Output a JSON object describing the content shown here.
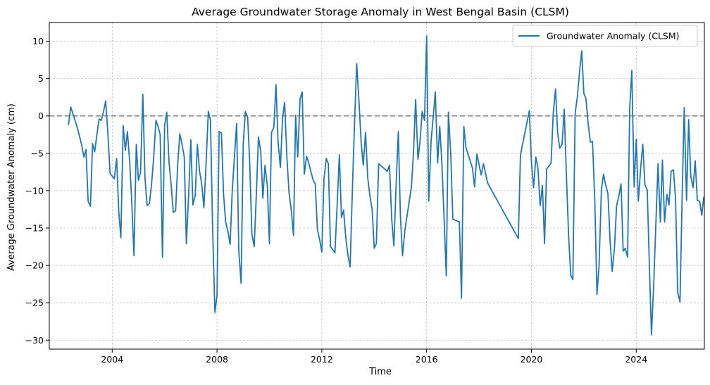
{
  "chart_data": {
    "type": "line",
    "title": "Average Groundwater Storage Anomaly in West Bengal Basin (CLSM)",
    "xlabel": "Time",
    "ylabel": "Average Groundwater Anomaly (cm)",
    "xlim": [
      2001.6,
      2026.6
    ],
    "ylim": [
      -31.2,
      12.5
    ],
    "xticks": [
      2004,
      2008,
      2012,
      2016,
      2020,
      2024
    ],
    "yticks": [
      -30,
      -25,
      -20,
      -15,
      -10,
      -5,
      0,
      5,
      10
    ],
    "grid": true,
    "reference_line": {
      "y": 0,
      "style": "dashed",
      "color": "#808080"
    },
    "legend": {
      "location": "top-right",
      "entries": [
        "Groundwater Anomaly (CLSM)"
      ]
    },
    "colors": {
      "series": "#1f77b4",
      "reference": "#808080",
      "grid": "#b0b0b0"
    },
    "series": [
      {
        "name": "Groundwater Anomaly (CLSM)",
        "points": [
          [
            2002.33,
            -1.2
          ],
          [
            2002.42,
            1.2
          ],
          [
            2002.5,
            0.3
          ],
          [
            2002.58,
            -0.6
          ],
          [
            2002.67,
            -1.6
          ],
          [
            2002.75,
            -2.7
          ],
          [
            2002.83,
            -3.8
          ],
          [
            2002.92,
            -5.5
          ],
          [
            2003.0,
            -4.5
          ],
          [
            2003.08,
            -11.4
          ],
          [
            2003.17,
            -12.1
          ],
          [
            2003.25,
            -3.7
          ],
          [
            2003.33,
            -4.8
          ],
          [
            2003.42,
            -2.4
          ],
          [
            2003.5,
            -0.4
          ],
          [
            2003.58,
            -0.6
          ],
          [
            2003.67,
            0.6
          ],
          [
            2003.75,
            2.0
          ],
          [
            2003.83,
            -2.1
          ],
          [
            2003.92,
            -7.7
          ],
          [
            2004.08,
            -8.4
          ],
          [
            2004.17,
            -5.7
          ],
          [
            2004.25,
            -12.8
          ],
          [
            2004.33,
            -16.3
          ],
          [
            2004.42,
            -1.3
          ],
          [
            2004.5,
            -4.6
          ],
          [
            2004.58,
            -2.1
          ],
          [
            2004.67,
            -6.2
          ],
          [
            2004.75,
            -11.8
          ],
          [
            2004.83,
            -18.7
          ],
          [
            2004.92,
            -3.8
          ],
          [
            2005.0,
            -8.6
          ],
          [
            2005.08,
            -7.6
          ],
          [
            2005.17,
            2.9
          ],
          [
            2005.25,
            -8.2
          ],
          [
            2005.33,
            -12.0
          ],
          [
            2005.42,
            -11.7
          ],
          [
            2005.5,
            -9.2
          ],
          [
            2005.58,
            -5.7
          ],
          [
            2005.67,
            -0.6
          ],
          [
            2005.75,
            -1.4
          ],
          [
            2005.83,
            -2.5
          ],
          [
            2005.92,
            -18.9
          ],
          [
            2006.0,
            -1.3
          ],
          [
            2006.08,
            0.5
          ],
          [
            2006.17,
            -6.2
          ],
          [
            2006.25,
            -9.2
          ],
          [
            2006.33,
            -12.9
          ],
          [
            2006.42,
            -12.7
          ],
          [
            2006.5,
            -6.5
          ],
          [
            2006.58,
            -2.4
          ],
          [
            2006.67,
            -3.9
          ],
          [
            2006.75,
            -5.5
          ],
          [
            2006.83,
            -17.1
          ],
          [
            2006.92,
            -10.4
          ],
          [
            2007.0,
            -3.2
          ],
          [
            2007.08,
            -11.9
          ],
          [
            2007.17,
            -10.6
          ],
          [
            2007.25,
            -3.8
          ],
          [
            2007.33,
            -7.3
          ],
          [
            2007.42,
            -9.2
          ],
          [
            2007.5,
            -12.3
          ],
          [
            2007.58,
            -6.5
          ],
          [
            2007.67,
            0.6
          ],
          [
            2007.75,
            -0.6
          ],
          [
            2007.83,
            -14.7
          ],
          [
            2007.92,
            -26.3
          ],
          [
            2008.0,
            -24.0
          ],
          [
            2008.08,
            -2.1
          ],
          [
            2008.17,
            -2.3
          ],
          [
            2008.25,
            -10.5
          ],
          [
            2008.33,
            -14.2
          ],
          [
            2008.42,
            -15.5
          ],
          [
            2008.5,
            -17.2
          ],
          [
            2008.58,
            -10.1
          ],
          [
            2008.67,
            -5.2
          ],
          [
            2008.75,
            -1.0
          ],
          [
            2008.83,
            -18.0
          ],
          [
            2008.92,
            -22.4
          ],
          [
            2009.0,
            -3.8
          ],
          [
            2009.08,
            0.6
          ],
          [
            2009.17,
            -0.2
          ],
          [
            2009.25,
            -6.5
          ],
          [
            2009.33,
            -15.8
          ],
          [
            2009.42,
            -17.5
          ],
          [
            2009.5,
            -10.6
          ],
          [
            2009.58,
            -2.8
          ],
          [
            2009.67,
            -4.8
          ],
          [
            2009.75,
            -11.0
          ],
          [
            2009.83,
            -6.6
          ],
          [
            2009.92,
            -9.3
          ],
          [
            2010.0,
            -17.1
          ],
          [
            2010.08,
            -2.2
          ],
          [
            2010.17,
            -1.5
          ],
          [
            2010.25,
            4.2
          ],
          [
            2010.33,
            -3.5
          ],
          [
            2010.42,
            -6.9
          ],
          [
            2010.5,
            -0.3
          ],
          [
            2010.58,
            1.8
          ],
          [
            2010.67,
            -5.7
          ],
          [
            2010.75,
            -10.3
          ],
          [
            2010.83,
            -12.5
          ],
          [
            2010.92,
            -16.0
          ],
          [
            2011.0,
            0.1
          ],
          [
            2011.08,
            -5.5
          ],
          [
            2011.17,
            2.3
          ],
          [
            2011.25,
            3.2
          ],
          [
            2011.33,
            -7.8
          ],
          [
            2011.42,
            -5.4
          ],
          [
            2011.5,
            -6.3
          ],
          [
            2011.58,
            -7.4
          ],
          [
            2011.67,
            -8.6
          ],
          [
            2011.75,
            -9.1
          ],
          [
            2011.83,
            -15.2
          ],
          [
            2011.92,
            -16.6
          ],
          [
            2012.0,
            -18.2
          ],
          [
            2012.08,
            -8.5
          ],
          [
            2012.17,
            -5.7
          ],
          [
            2012.25,
            -6.4
          ],
          [
            2012.33,
            -17.5
          ],
          [
            2012.42,
            -17.9
          ],
          [
            2012.5,
            -18.3
          ],
          [
            2012.58,
            -12.2
          ],
          [
            2012.67,
            -5.2
          ],
          [
            2012.75,
            -13.6
          ],
          [
            2012.83,
            -12.6
          ],
          [
            2012.92,
            -16.5
          ],
          [
            2013.0,
            -18.7
          ],
          [
            2013.08,
            -20.2
          ],
          [
            2013.17,
            -9.5
          ],
          [
            2013.25,
            -0.8
          ],
          [
            2013.33,
            7.0
          ],
          [
            2013.42,
            1.9
          ],
          [
            2013.5,
            -3.5
          ],
          [
            2013.58,
            -6.6
          ],
          [
            2013.67,
            -2.2
          ],
          [
            2013.75,
            -8.2
          ],
          [
            2013.83,
            -10.6
          ],
          [
            2013.92,
            -12.5
          ],
          [
            2014.0,
            -17.7
          ],
          [
            2014.08,
            -17.1
          ],
          [
            2014.17,
            -6.4
          ],
          [
            2014.5,
            -7.4
          ],
          [
            2014.58,
            -6.6
          ],
          [
            2014.67,
            -13.9
          ],
          [
            2014.75,
            -17.4
          ],
          [
            2014.83,
            -9.6
          ],
          [
            2014.92,
            -2.1
          ],
          [
            2015.0,
            -13.5
          ],
          [
            2015.08,
            -18.7
          ],
          [
            2015.17,
            -15.3
          ],
          [
            2015.42,
            -9.5
          ],
          [
            2015.5,
            -4.8
          ],
          [
            2015.58,
            2.2
          ],
          [
            2015.67,
            -5.8
          ],
          [
            2015.75,
            -3.3
          ],
          [
            2015.83,
            0.6
          ],
          [
            2015.92,
            -0.6
          ],
          [
            2016.0,
            10.7
          ],
          [
            2016.08,
            -11.4
          ],
          [
            2016.17,
            -3.4
          ],
          [
            2016.25,
            -0.2
          ],
          [
            2016.33,
            3.2
          ],
          [
            2016.42,
            -6.3
          ],
          [
            2016.5,
            -1.4
          ],
          [
            2016.58,
            -6.2
          ],
          [
            2016.67,
            -14.0
          ],
          [
            2016.75,
            -21.4
          ],
          [
            2016.83,
            0.5
          ],
          [
            2016.92,
            -5.0
          ],
          [
            2017.0,
            -13.8
          ],
          [
            2017.25,
            -14.2
          ],
          [
            2017.33,
            -24.4
          ],
          [
            2017.42,
            -1.4
          ],
          [
            2017.5,
            -4.2
          ],
          [
            2017.75,
            -7.0
          ],
          [
            2017.83,
            -9.5
          ],
          [
            2017.92,
            -5.1
          ],
          [
            2018.08,
            -7.9
          ],
          [
            2018.17,
            -6.4
          ],
          [
            2018.33,
            -9.0
          ],
          [
            2019.5,
            -16.4
          ],
          [
            2019.58,
            -5.2
          ],
          [
            2019.92,
            0.7
          ],
          [
            2020.0,
            -6.2
          ],
          [
            2020.08,
            -9.6
          ],
          [
            2020.17,
            -5.5
          ],
          [
            2020.25,
            -7.1
          ],
          [
            2020.33,
            -12.0
          ],
          [
            2020.42,
            -9.3
          ],
          [
            2020.5,
            -17.1
          ],
          [
            2020.58,
            -7.1
          ],
          [
            2020.75,
            -6.3
          ],
          [
            2020.83,
            0.3
          ],
          [
            2020.92,
            3.6
          ],
          [
            2021.0,
            -2.3
          ],
          [
            2021.08,
            -4.3
          ],
          [
            2021.17,
            -3.8
          ],
          [
            2021.25,
            0.9
          ],
          [
            2021.33,
            -7.6
          ],
          [
            2021.42,
            -16.1
          ],
          [
            2021.5,
            -21.3
          ],
          [
            2021.58,
            -21.9
          ],
          [
            2021.67,
            0.4
          ],
          [
            2021.75,
            2.5
          ],
          [
            2021.83,
            5.7
          ],
          [
            2021.92,
            8.7
          ],
          [
            2022.0,
            3.0
          ],
          [
            2022.08,
            2.3
          ],
          [
            2022.17,
            -1.2
          ],
          [
            2022.25,
            -3.5
          ],
          [
            2022.33,
            -3.4
          ],
          [
            2022.42,
            -11.5
          ],
          [
            2022.5,
            -23.9
          ],
          [
            2022.58,
            -20.0
          ],
          [
            2022.67,
            -9.9
          ],
          [
            2022.75,
            -7.8
          ],
          [
            2022.83,
            -9.2
          ],
          [
            2022.92,
            -10.4
          ],
          [
            2023.0,
            -16.6
          ],
          [
            2023.08,
            -20.8
          ],
          [
            2023.17,
            -17.6
          ],
          [
            2023.25,
            -12.0
          ],
          [
            2023.33,
            -10.8
          ],
          [
            2023.42,
            -9.1
          ],
          [
            2023.5,
            -18.1
          ],
          [
            2023.58,
            -17.7
          ],
          [
            2023.67,
            -18.9
          ],
          [
            2023.75,
            1.0
          ],
          [
            2023.83,
            6.1
          ],
          [
            2023.92,
            -9.5
          ],
          [
            2024.0,
            -3.1
          ],
          [
            2024.08,
            -11.4
          ],
          [
            2024.17,
            -6.9
          ],
          [
            2024.25,
            -3.8
          ],
          [
            2024.33,
            -9.2
          ],
          [
            2024.42,
            -9.9
          ],
          [
            2024.5,
            -19.9
          ],
          [
            2024.58,
            -29.3
          ],
          [
            2024.67,
            -22.3
          ],
          [
            2024.75,
            -14.3
          ],
          [
            2024.83,
            -6.4
          ],
          [
            2024.92,
            -14.2
          ],
          [
            2025.0,
            -5.9
          ],
          [
            2025.08,
            -14.2
          ],
          [
            2025.17,
            -10.5
          ],
          [
            2025.25,
            -11.9
          ],
          [
            2025.33,
            -7.4
          ],
          [
            2025.42,
            -7.2
          ],
          [
            2025.5,
            -11.1
          ],
          [
            2025.58,
            -23.6
          ],
          [
            2025.67,
            -24.9
          ],
          [
            2025.75,
            -11.1
          ],
          [
            2025.83,
            1.1
          ],
          [
            2025.92,
            -11.3
          ],
          [
            2026.0,
            -0.5
          ],
          [
            2026.08,
            -8.1
          ],
          [
            2026.17,
            -9.6
          ],
          [
            2026.25,
            -6.0
          ],
          [
            2026.33,
            -11.3
          ],
          [
            2026.42,
            -11.4
          ],
          [
            2026.5,
            -13.3
          ],
          [
            2026.58,
            -10.8
          ]
        ]
      }
    ]
  }
}
